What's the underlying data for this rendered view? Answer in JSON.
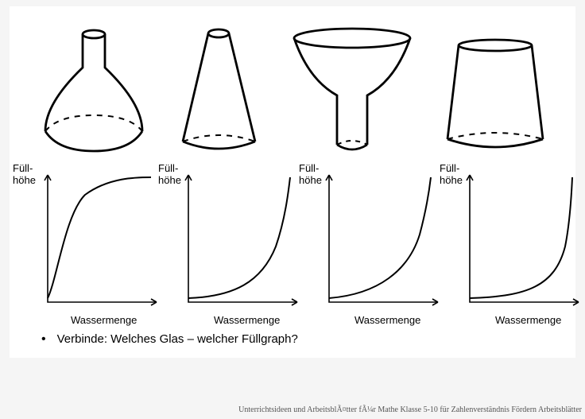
{
  "axis": {
    "y_label_line1": "Füll-",
    "y_label_line2": "höhe",
    "x_label": "Wassermenge"
  },
  "question": "Verbinde: Welches Glas – welcher Füllgraph?",
  "footer": "Unterrichtsideen und ArbeitsblÃ¤tter fÃ¼r Mathe Klasse 5-10 für Zahlenverständnis Fördern Arbeitsblätter",
  "glasses": {
    "stroke": "#000000",
    "stroke_width": 2.8,
    "dash": "7,7"
  },
  "graphs": {
    "axis_color": "#000000",
    "curve_color": "#000000",
    "curve_width": 2,
    "curves": [
      "M8,160 C20,135 30,55 55,30 C85,8 120,8 138,8",
      "M8,160 C65,158 100,140 118,95 C130,60 134,25 136,8",
      "M8,160 C70,155 108,125 122,80 C130,50 134,25 136,8",
      "M8,160 C80,158 115,145 128,95 C134,65 136,30 137,8"
    ]
  }
}
